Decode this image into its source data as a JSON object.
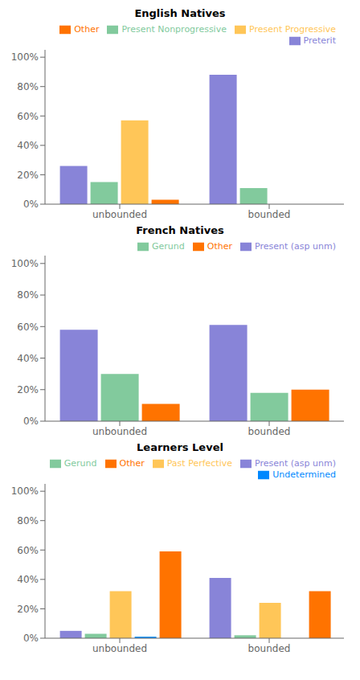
{
  "chart_data": [
    {
      "type": "bar",
      "title": "English Natives",
      "categories": [
        "unbounded",
        "bounded"
      ],
      "series": [
        {
          "name": "Preterit",
          "color": "#8884d8",
          "values": [
            0.26,
            0.88
          ]
        },
        {
          "name": "Present Nonprogressive",
          "color": "#82ca9d",
          "values": [
            0.15,
            0.11
          ]
        },
        {
          "name": "Present Progressive",
          "color": "#ffc658",
          "values": [
            0.57,
            0.0
          ]
        },
        {
          "name": "Other",
          "color": "#ff7300",
          "values": [
            0.03,
            0.0
          ]
        }
      ],
      "ylim": [
        0,
        1.05
      ],
      "yticks": [
        {
          "value": 0,
          "label": "0%"
        },
        {
          "value": 0.2,
          "label": "20%"
        },
        {
          "value": 0.4,
          "label": "40%"
        },
        {
          "value": 0.6,
          "label": "60%"
        },
        {
          "value": 0.8,
          "label": "80%"
        },
        {
          "value": 1.0,
          "label": "100%"
        }
      ],
      "grid": false,
      "legend": "upper right"
    },
    {
      "type": "bar",
      "title": "French Natives",
      "categories": [
        "unbounded",
        "bounded"
      ],
      "series": [
        {
          "name": "Present (asp unm)",
          "color": "#8884d8",
          "values": [
            0.58,
            0.61
          ]
        },
        {
          "name": "Gerund",
          "color": "#82ca9d",
          "values": [
            0.3,
            0.18
          ]
        },
        {
          "name": "Other",
          "color": "#ff7300",
          "values": [
            0.11,
            0.2
          ]
        }
      ],
      "ylim": [
        0,
        1.05
      ],
      "yticks": [
        {
          "value": 0,
          "label": "0%"
        },
        {
          "value": 0.2,
          "label": "20%"
        },
        {
          "value": 0.4,
          "label": "40%"
        },
        {
          "value": 0.6,
          "label": "60%"
        },
        {
          "value": 0.8,
          "label": "80%"
        },
        {
          "value": 1.0,
          "label": "100%"
        }
      ],
      "grid": false,
      "legend": "upper right"
    },
    {
      "type": "bar",
      "title": "Learners Level",
      "categories": [
        "unbounded",
        "bounded"
      ],
      "series": [
        {
          "name": "Present (asp unm)",
          "color": "#8884d8",
          "values": [
            0.05,
            0.41
          ]
        },
        {
          "name": "Gerund",
          "color": "#82ca9d",
          "values": [
            0.03,
            0.02
          ]
        },
        {
          "name": "Past Perfective",
          "color": "#ffc658",
          "values": [
            0.32,
            0.24
          ]
        },
        {
          "name": "Undetermined",
          "color": "#0088fe",
          "values": [
            0.01,
            0.0
          ]
        },
        {
          "name": "Other",
          "color": "#ff7300",
          "values": [
            0.59,
            0.32
          ]
        }
      ],
      "ylim": [
        0,
        1.05
      ],
      "yticks": [
        {
          "value": 0,
          "label": "0%"
        },
        {
          "value": 0.2,
          "label": "20%"
        },
        {
          "value": 0.4,
          "label": "40%"
        },
        {
          "value": 0.6,
          "label": "60%"
        },
        {
          "value": 0.8,
          "label": "80%"
        },
        {
          "value": 1.0,
          "label": "100%"
        }
      ],
      "grid": false,
      "legend": "upper right"
    }
  ]
}
